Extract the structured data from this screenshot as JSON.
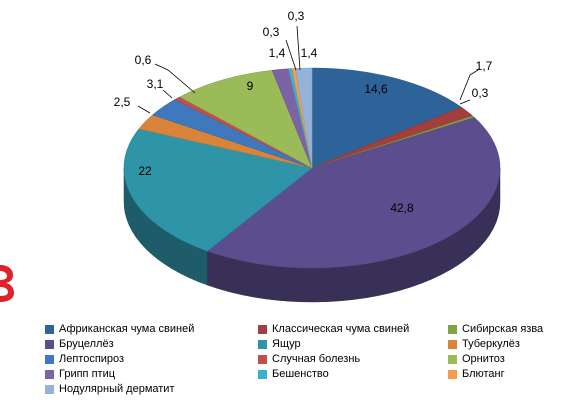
{
  "chart_data": {
    "type": "pie",
    "style": "3d",
    "title": "",
    "legend_position": "bottom",
    "data_labels_shown": true,
    "slices": [
      {
        "label": "Африканская чума свиней",
        "value": 14.6,
        "display": "14,6",
        "color": "#2E6399"
      },
      {
        "label": "Классическая чума свиней",
        "value": 1.7,
        "display": "1,7",
        "color": "#A23E3B"
      },
      {
        "label": "Сибирская язва",
        "value": 0.3,
        "display": "0,3",
        "color": "#7FA343"
      },
      {
        "label": "Бруцеллёз",
        "value": 42.8,
        "display": "42,8",
        "color": "#5C4D8E"
      },
      {
        "label": "Ящур",
        "value": 22,
        "display": "22",
        "color": "#2E94A8"
      },
      {
        "label": "Туберкулёз",
        "value": 2.5,
        "display": "2,5",
        "color": "#D9843A"
      },
      {
        "label": "Лептоспироз",
        "value": 3.1,
        "display": "3,1",
        "color": "#3F78BC"
      },
      {
        "label": "Случная болезнь",
        "value": 0.6,
        "display": "0,6",
        "color": "#C0504D"
      },
      {
        "label": "Орнитоз",
        "value": 9,
        "display": "9",
        "color": "#9BBB59"
      },
      {
        "label": "Грипп птиц",
        "value": 1.4,
        "display": "1,4",
        "color": "#7C63A5"
      },
      {
        "label": "Бешенство",
        "value": 0.3,
        "display": "0,3",
        "color": "#3CB1CA"
      },
      {
        "label": "Блютанг",
        "value": 0.3,
        "display": "0,3",
        "color": "#F59D4C"
      },
      {
        "label": "Нодулярный дерматит",
        "value": 1.4,
        "display": "1,4",
        "color": "#95B3D7"
      }
    ]
  }
}
